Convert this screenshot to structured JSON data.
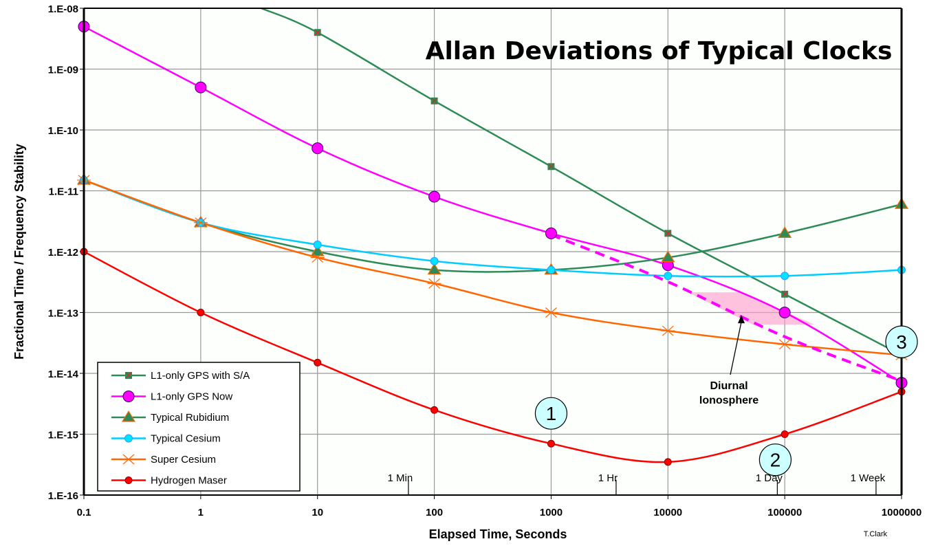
{
  "chart_data": {
    "type": "line",
    "title": "Allan Deviations of Typical Clocks",
    "xlabel": "Elapsed Time, Seconds",
    "ylabel": "Fractional Time / Frequency Stability",
    "xscale": "log",
    "yscale": "log",
    "xlim": [
      0.1,
      1000000
    ],
    "ylim": [
      1e-16,
      1e-08
    ],
    "grid": true,
    "legend_position": "bottom-left",
    "x_tick_labels": [
      "0.1",
      "1",
      "10",
      "100",
      "1000",
      "10000",
      "100000",
      "1000000"
    ],
    "y_tick_labels": [
      "1.E-08",
      "1.E-09",
      "1.E-10",
      "1.E-11",
      "1.E-12",
      "1.E-13",
      "1.E-14",
      "1.E-15",
      "1.E-16"
    ],
    "time_markers": [
      {
        "label": "1 Min",
        "x": 60
      },
      {
        "label": "1 Hr",
        "x": 3600
      },
      {
        "label": "1 Day",
        "x": 86400
      },
      {
        "label": "1 Week",
        "x": 604800
      }
    ],
    "series": [
      {
        "name": "L1-only GPS with S/A",
        "color": "#2e8b57",
        "marker": "square",
        "x": [
          3.3,
          10,
          100,
          1000,
          10000,
          100000,
          1000000
        ],
        "values": [
          1e-08,
          4e-09,
          3e-10,
          2.5e-11,
          2e-12,
          2e-13,
          2e-14
        ],
        "marker_from": 1
      },
      {
        "name": "L1-only GPS Now",
        "color": "#ff00ff",
        "marker": "circle-large",
        "x": [
          0.1,
          1,
          10,
          100,
          1000,
          10000,
          100000,
          1000000
        ],
        "values": [
          5e-09,
          5e-10,
          5e-11,
          8e-12,
          2e-12,
          6e-13,
          1e-13,
          7e-15
        ]
      },
      {
        "name": "Typical Rubidium",
        "color": "#2e8b57",
        "marker": "triangle",
        "x": [
          0.1,
          1,
          10,
          100,
          1000,
          10000,
          100000,
          1000000
        ],
        "values": [
          1.5e-11,
          3e-12,
          1e-12,
          5e-13,
          5e-13,
          8e-13,
          2e-12,
          6e-12
        ]
      },
      {
        "name": "Typical Cesium",
        "color": "#00ccff",
        "marker": "circle-small",
        "x": [
          0.1,
          1,
          10,
          100,
          1000,
          10000,
          100000,
          1000000
        ],
        "values": [
          1.5e-11,
          3e-12,
          1.3e-12,
          7e-13,
          5e-13,
          4e-13,
          4e-13,
          5e-13
        ]
      },
      {
        "name": "Super Cesium",
        "color": "#ff6600",
        "marker": "asterisk",
        "x": [
          0.1,
          1,
          10,
          100,
          1000,
          10000,
          100000,
          1000000
        ],
        "values": [
          1.5e-11,
          3e-12,
          8e-13,
          3e-13,
          1e-13,
          5e-14,
          3e-14,
          2e-14
        ]
      },
      {
        "name": "Hydrogen Maser",
        "color": "#ff0000",
        "marker": "circle-red",
        "x": [
          0.1,
          1,
          10,
          100,
          1000,
          10000,
          100000,
          1000000
        ],
        "values": [
          1e-12,
          1e-13,
          1.5e-14,
          2.5e-15,
          7e-16,
          3.5e-16,
          1e-15,
          5e-15
        ]
      }
    ],
    "dashed_projection": {
      "color": "#ff00ff",
      "x": [
        1000,
        10000,
        100000,
        1000000
      ],
      "values": [
        1.9e-12,
        3.2e-13,
        4e-14,
        7.5e-15
      ]
    },
    "shaded_region": {
      "color": "#ff99cc",
      "x": [
        14770,
        40700,
        181000,
        53500
      ],
      "values": [
        2.15e-13,
        2.15e-13,
        6.3e-14,
        6.3e-14
      ]
    },
    "annotations": [
      {
        "text_lines": [
          "Diurnal",
          "Ionosphere"
        ],
        "arrow_from": [
          34200,
          9.5e-15
        ],
        "arrow_to": [
          42500,
          9.1e-14
        ]
      },
      {
        "text": "1",
        "x": 1000,
        "y": 2.2e-15
      },
      {
        "text": "2",
        "x": 83000,
        "y": 3.8e-16
      },
      {
        "text": "3",
        "x": 1000000,
        "y": 3.3e-14
      }
    ],
    "credit": "T.Clark"
  }
}
